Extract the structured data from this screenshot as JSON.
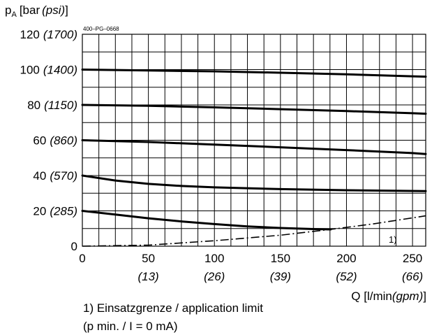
{
  "chart_data": {
    "type": "line",
    "drawing_code": "400–PG–0668",
    "ylabel": {
      "main": "p",
      "sub": "A",
      "unit": "[bar",
      "alt_unit": "(psi)",
      "close": "]"
    },
    "xlabel": {
      "main": "Q [l/min",
      "alt_unit": "(gpm)",
      "close": "]"
    },
    "xlim": [
      0,
      260
    ],
    "ylim": [
      0,
      120
    ],
    "x_ticks": [
      {
        "value": 0,
        "label": "0",
        "alt": ""
      },
      {
        "value": 50,
        "label": "50",
        "alt": "(13)"
      },
      {
        "value": 100,
        "label": "100",
        "alt": "(26)"
      },
      {
        "value": 150,
        "label": "150",
        "alt": "(39)"
      },
      {
        "value": 200,
        "label": "200",
        "alt": "(52)"
      },
      {
        "value": 250,
        "label": "250",
        "alt": "(66)"
      }
    ],
    "y_ticks": [
      {
        "value": 0,
        "label": "0",
        "alt": ""
      },
      {
        "value": 20,
        "label": "20",
        "alt": "(285)"
      },
      {
        "value": 40,
        "label": "40",
        "alt": "(570)"
      },
      {
        "value": 60,
        "label": "60",
        "alt": "(860)"
      },
      {
        "value": 80,
        "label": "80",
        "alt": "(1150)"
      },
      {
        "value": 100,
        "label": "100",
        "alt": "(1400)"
      },
      {
        "value": 120,
        "label": "120",
        "alt": "(1700)"
      }
    ],
    "x_grid": [
      0,
      12.5,
      25,
      37.5,
      50,
      62.5,
      75,
      87.5,
      100,
      112.5,
      125,
      137.5,
      150,
      162.5,
      175,
      187.5,
      200,
      212.5,
      225,
      237.5,
      250,
      260
    ],
    "y_grid": [
      0,
      10,
      20,
      30,
      40,
      50,
      60,
      70,
      80,
      90,
      100,
      110,
      120
    ],
    "series": [
      {
        "x": [
          0,
          50,
          100,
          150,
          200,
          250,
          260
        ],
        "y": [
          100,
          99.5,
          99,
          98.2,
          97.3,
          96.2,
          96
        ]
      },
      {
        "x": [
          0,
          50,
          100,
          150,
          200,
          250,
          260
        ],
        "y": [
          80,
          79.5,
          78.6,
          77.6,
          76.5,
          75.3,
          75
        ]
      },
      {
        "x": [
          0,
          50,
          100,
          150,
          200,
          250,
          260
        ],
        "y": [
          60,
          59,
          57.5,
          56,
          54.4,
          52.7,
          52.2
        ]
      },
      {
        "x": [
          0,
          25,
          50,
          75,
          100,
          150,
          200,
          260
        ],
        "y": [
          40,
          37.2,
          35.3,
          34.1,
          33.3,
          32.3,
          31.7,
          31.2
        ]
      },
      {
        "x": [
          0,
          25,
          50,
          75,
          100,
          125,
          150,
          175,
          188
        ],
        "y": [
          20,
          17.9,
          15.8,
          14,
          12.5,
          11.2,
          10.3,
          9.7,
          9.5
        ]
      }
    ],
    "limit_curve": {
      "name": "1)",
      "x": [
        0,
        50,
        100,
        150,
        188,
        220,
        260
      ],
      "y": [
        0,
        0.6,
        3.1,
        6.2,
        9.5,
        12.6,
        17.2
      ]
    },
    "footnote": {
      "line1": "1) Einsatzgrenze / application limit",
      "line2": "(p min. / I = 0 mA)"
    }
  }
}
